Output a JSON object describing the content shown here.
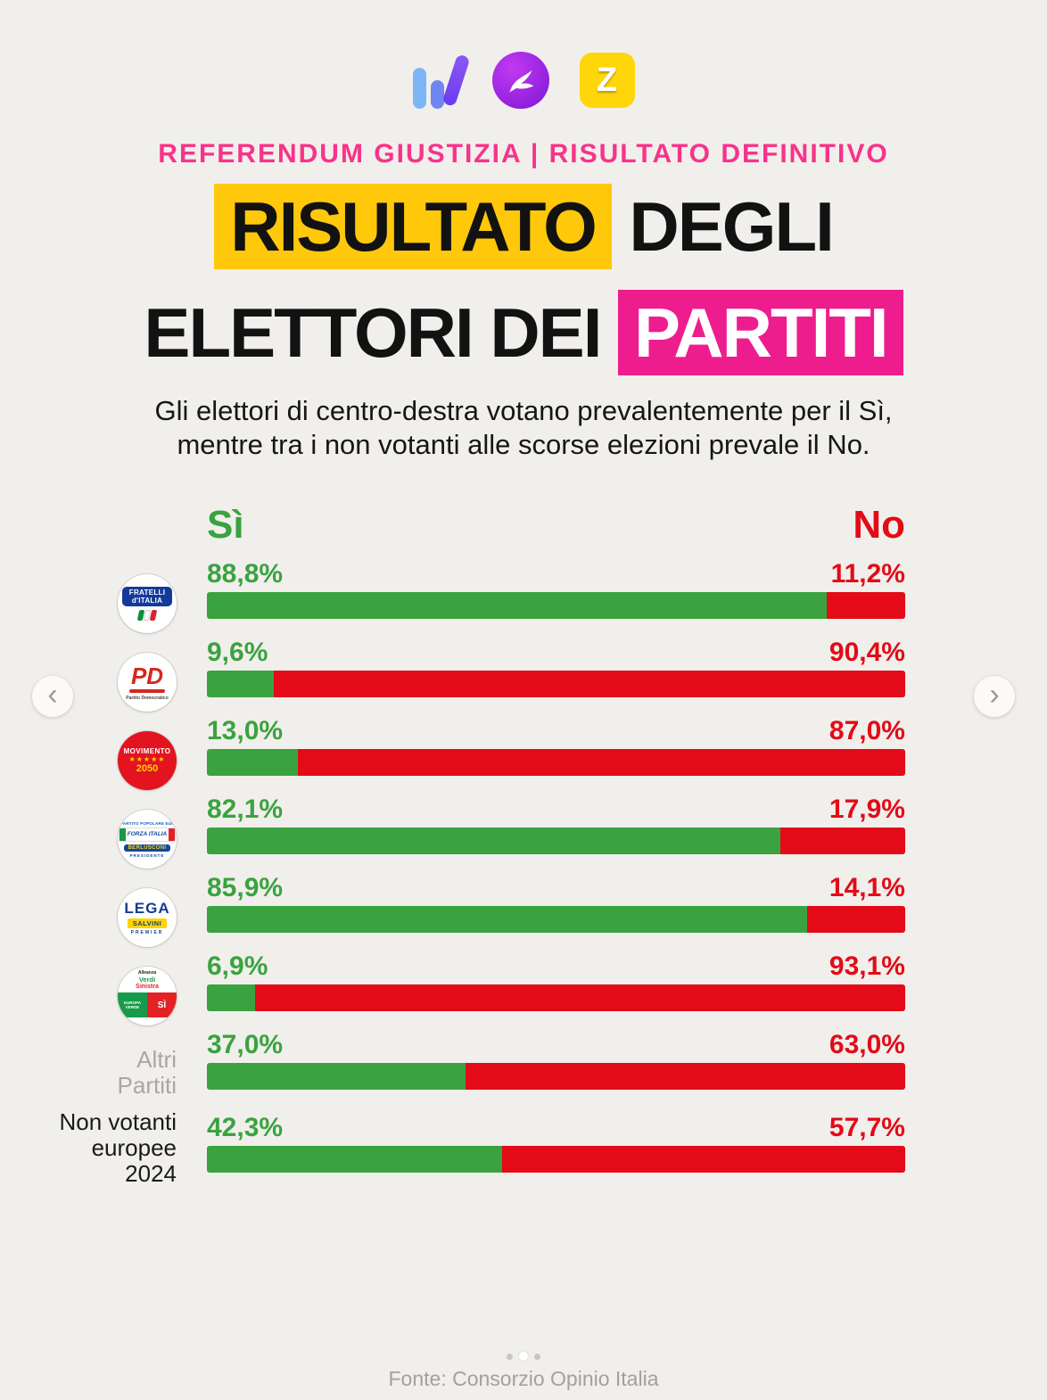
{
  "header": {
    "eyebrow": "REFERENDUM GIUSTIZIA | RISULTATO DEFINITIVO",
    "title_line1_highlight": "RISULTATO",
    "title_line1_rest": " DEGLI",
    "title_line2_rest": "ELETTORI DEI ",
    "title_line2_highlight": "PARTITI",
    "subtitle_line1": "Gli elettori di centro-destra votano prevalentemente per il Sì,",
    "subtitle_line2": "mentre tra i non votanti alle scorse elezioni prevale il No."
  },
  "brand": {
    "z_letter": "Z"
  },
  "party_logos": {
    "fdi": {
      "line1": "FRATELLI",
      "line2": "d'ITALIA"
    },
    "pd": {
      "name": "PD",
      "sub": "Partito Democratico"
    },
    "m5s": {
      "name": "MOVIMENTO",
      "stars": "★★★★★",
      "year": "2050"
    },
    "fi": {
      "top": "PARTITO POPOLARE EUROPEO",
      "name": "FORZA ITALIA",
      "band": "BERLUSCONI",
      "sub": "PRESIDENTE"
    },
    "lega": {
      "name": "LEGA",
      "band": "SALVINI",
      "sub": "PREMIER"
    },
    "avs": {
      "top1": "Alleanza",
      "top2": "Verdi",
      "top3": "Sinistra",
      "left": "EUROPA VERDE",
      "right": "SÌ"
    }
  },
  "side_labels": {
    "altri": [
      "Altri",
      "Partiti"
    ],
    "non_votanti": [
      "Non votanti",
      "europee",
      "2024"
    ]
  },
  "chart_data": {
    "type": "bar",
    "orientation": "horizontal",
    "stacked": true,
    "title": "Risultato degli elettori dei partiti",
    "legend": [
      "Sì",
      "No"
    ],
    "legend_position": "top",
    "col_si": "Sì",
    "col_no": "No",
    "xlim": [
      0,
      100
    ],
    "value_suffix": "%",
    "categories": [
      "Fratelli d'Italia",
      "PD Partito Democratico",
      "Movimento 5 Stelle 2050",
      "Forza Italia Berlusconi",
      "Lega Salvini Premier",
      "Alleanza Verdi Sinistra",
      "Altri Partiti",
      "Non votanti europee 2024"
    ],
    "series": [
      {
        "name": "Sì",
        "color": "#3aa33f",
        "values": [
          88.8,
          9.6,
          13.0,
          82.1,
          85.9,
          6.9,
          37.0,
          42.3
        ]
      },
      {
        "name": "No",
        "color": "#e30b17",
        "values": [
          11.2,
          90.4,
          87.0,
          17.9,
          14.1,
          93.1,
          63.0,
          57.7
        ]
      }
    ],
    "si_labels": [
      "88,8%",
      "9,6%",
      "13,0%",
      "82,1%",
      "85,9%",
      "6,9%",
      "37,0%",
      "42,3%"
    ],
    "no_labels": [
      "11,2%",
      "90,4%",
      "87,0%",
      "17,9%",
      "14,1%",
      "93,1%",
      "63,0%",
      "57,7%"
    ]
  },
  "carousel": {
    "prev_icon": "‹",
    "next_icon": "›"
  },
  "footer": {
    "source": "Fonte: Consorzio Opinio Italia"
  },
  "colors": {
    "si_green": "#3aa33f",
    "no_red": "#e30b17",
    "highlight_yellow": "#ffc80a",
    "highlight_magenta": "#ee1d8d",
    "eyebrow_pink": "#f8338a",
    "background": "#f1efec"
  }
}
